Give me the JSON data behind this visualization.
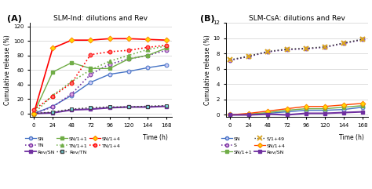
{
  "title_A": "SLM-Ind: dilutions and Rev",
  "title_B": "SLM-CsA: dilutions and Rev",
  "label_A": "(A)",
  "label_B": "(B)",
  "ylabel": "Cumulative release (%)",
  "xlabel": "Time (h)",
  "time": [
    0,
    24,
    48,
    72,
    96,
    120,
    144,
    168
  ],
  "A": {
    "SN": [
      0,
      10,
      25,
      43,
      54,
      58,
      63,
      67
    ],
    "TN": [
      0,
      9,
      27,
      54,
      68,
      75,
      80,
      87
    ],
    "Rev_SN": [
      0,
      1,
      5,
      6,
      8,
      9,
      9,
      10
    ],
    "SN_1+1": [
      0,
      57,
      70,
      62,
      62,
      75,
      80,
      90
    ],
    "TN_1+1": [
      0,
      25,
      44,
      60,
      72,
      80,
      88,
      93
    ],
    "Rev_TN": [
      0,
      2,
      6,
      8,
      9,
      9,
      10,
      11
    ],
    "SN_1+4": [
      0,
      90,
      101,
      101,
      103,
      103,
      102,
      101
    ],
    "TN_1+4": [
      5,
      24,
      42,
      81,
      85,
      87,
      91,
      94
    ]
  },
  "B": {
    "SN": [
      0,
      0.05,
      0.2,
      0.4,
      0.6,
      0.6,
      0.7,
      1.0
    ],
    "S": [
      7.1,
      7.6,
      8.2,
      8.5,
      8.6,
      8.8,
      9.3,
      9.8
    ],
    "SN_1+1": [
      0,
      0.1,
      0.3,
      0.6,
      0.8,
      0.8,
      1.0,
      1.2
    ],
    "S_1+49": [
      7.15,
      7.65,
      8.25,
      8.55,
      8.65,
      8.85,
      9.35,
      9.85
    ],
    "SN_1+4": [
      0,
      0.2,
      0.5,
      0.8,
      1.1,
      1.1,
      1.3,
      1.5
    ],
    "Rev_SN": [
      0,
      0.0,
      0.1,
      0.0,
      0.2,
      0.2,
      0.3,
      0.4
    ]
  }
}
